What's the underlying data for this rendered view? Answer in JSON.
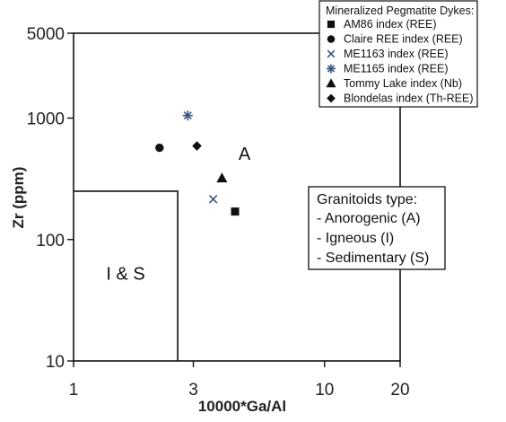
{
  "chart_data": {
    "type": "scatter",
    "title": "",
    "xlabel": "10000*Ga/Al",
    "ylabel": "Zr (ppm)",
    "xscale": "log",
    "yscale": "log",
    "xlim": [
      1,
      20
    ],
    "ylim": [
      10,
      5000
    ],
    "x_ticks": [
      {
        "value": 1,
        "label": "1"
      },
      {
        "value": 3,
        "label": "3"
      },
      {
        "value": 10,
        "label": "10"
      },
      {
        "value": 20,
        "label": "20"
      }
    ],
    "y_ticks": [
      {
        "value": 10,
        "label": "10"
      },
      {
        "value": 100,
        "label": "100"
      },
      {
        "value": 1000,
        "label": "1000"
      },
      {
        "value": 5000,
        "label": "5000"
      }
    ],
    "grid": false,
    "legend": {
      "title": "Mineralized Pegmatite Dykes:",
      "placement": "top-right"
    },
    "series": [
      {
        "name": "AM86 index (REE)",
        "marker": "square",
        "points": [
          {
            "x": 4.4,
            "y": 170
          }
        ]
      },
      {
        "name": "Claire REE index (REE)",
        "marker": "circle",
        "points": [
          {
            "x": 2.2,
            "y": 570
          }
        ]
      },
      {
        "name": "ME1163 index (REE)",
        "marker": "x",
        "points": [
          {
            "x": 3.6,
            "y": 215
          }
        ]
      },
      {
        "name": "ME1165 index (REE)",
        "marker": "asterisk",
        "points": [
          {
            "x": 2.85,
            "y": 1050
          }
        ]
      },
      {
        "name": "Tommy Lake index (Nb)",
        "marker": "triangle",
        "points": [
          {
            "x": 3.9,
            "y": 320
          }
        ]
      },
      {
        "name": "Blondelas index (Th-REE)",
        "marker": "diamond",
        "points": [
          {
            "x": 3.1,
            "y": 590
          }
        ]
      }
    ],
    "regions": [
      {
        "label": "I & S",
        "x_max": 2.6,
        "y_max": 250
      },
      {
        "label": "A"
      }
    ],
    "annotation_box": {
      "title": "Granitoids type:",
      "lines": [
        "- Anorogenic (A)",
        "- Igneous (I)",
        "- Sedimentary (S)"
      ]
    },
    "colors": {
      "axes": "#111111",
      "marker": "#111111",
      "ME1163 index (REE)": "#3a5680",
      "ME1165 index (REE)": "#3a5680"
    }
  }
}
